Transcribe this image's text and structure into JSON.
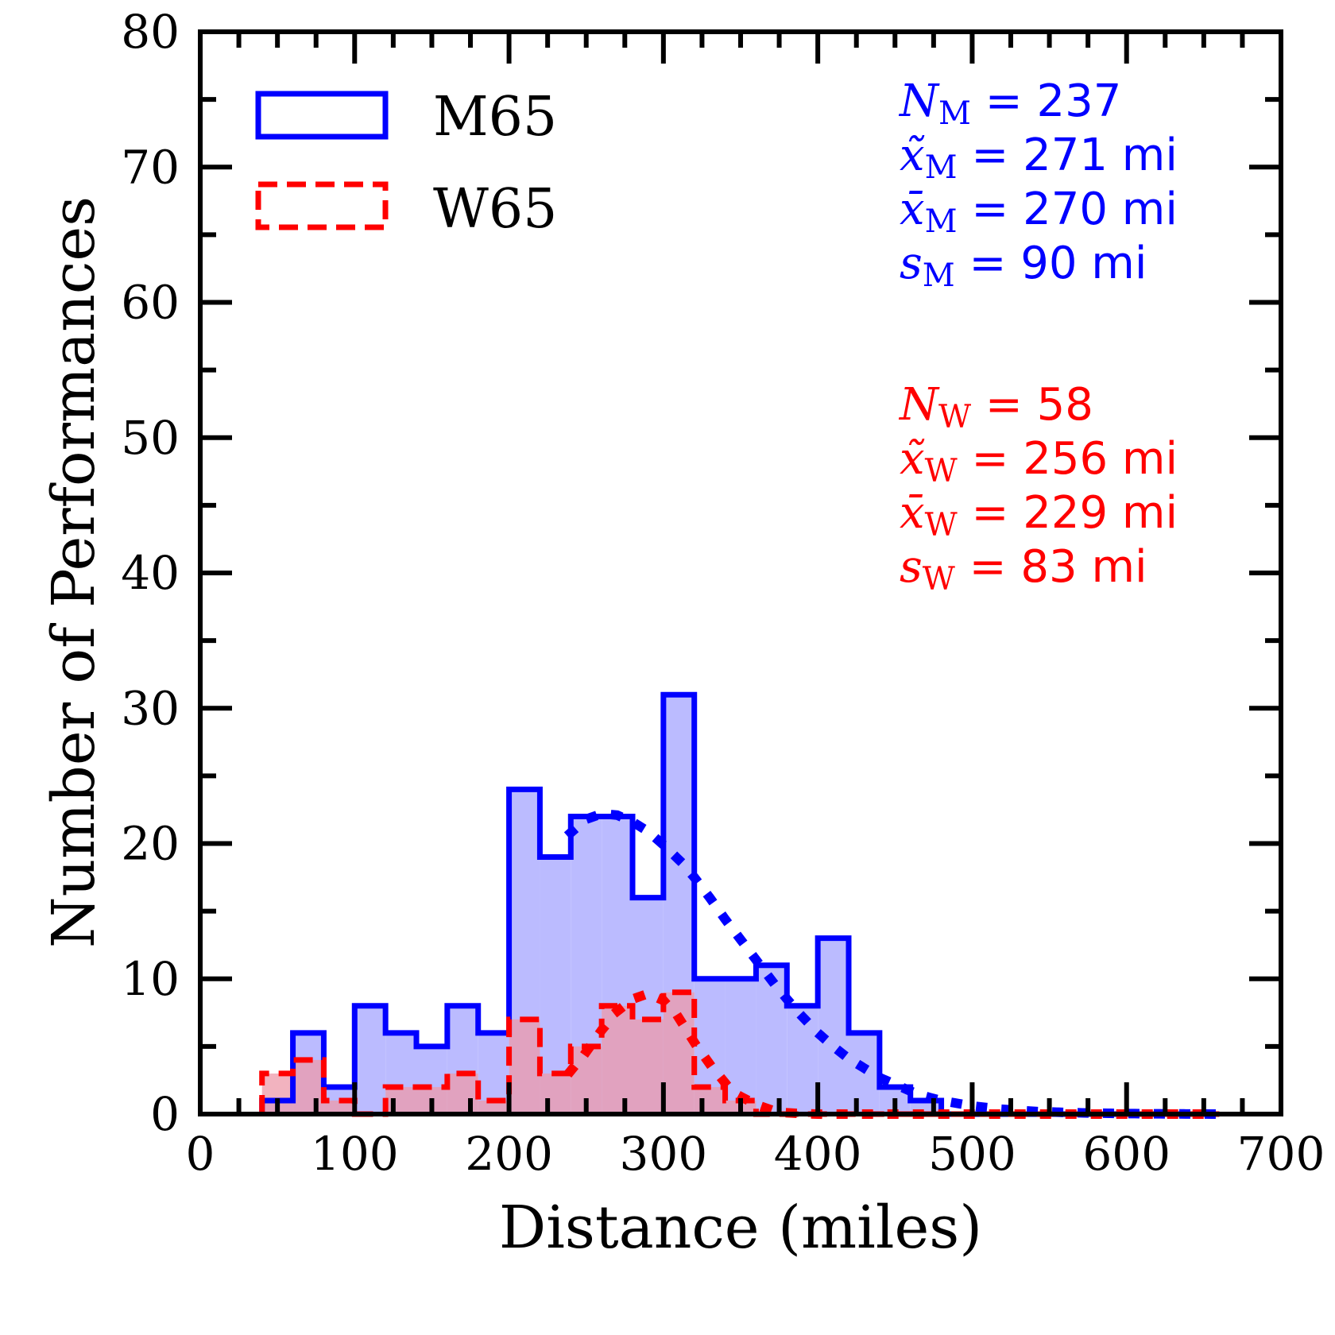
{
  "chart_data": {
    "type": "histogram",
    "xlabel": "Distance (miles)",
    "ylabel": "Number of Performances",
    "xlim": [
      0,
      700
    ],
    "ylim": [
      0,
      80
    ],
    "xticks": [
      0,
      100,
      200,
      300,
      400,
      500,
      600,
      700
    ],
    "yticks": [
      0,
      10,
      20,
      30,
      40,
      50,
      60,
      70,
      80
    ],
    "legend_position": "top-left",
    "bin_edges": [
      40,
      60,
      80,
      100,
      120,
      140,
      160,
      180,
      200,
      220,
      240,
      260,
      280,
      300,
      320,
      340,
      360,
      380,
      400,
      420,
      440,
      460,
      480,
      500,
      520,
      540,
      560,
      580,
      600,
      620,
      640,
      660
    ],
    "series": [
      {
        "name": "M65",
        "color": "#0000ff",
        "fill": "#bbbbff",
        "line_style": "solid",
        "counts": [
          1,
          6,
          2,
          8,
          6,
          5,
          8,
          6,
          24,
          19,
          22,
          22,
          16,
          31,
          10,
          10,
          11,
          8,
          13,
          6,
          2,
          1,
          0,
          0,
          0,
          0,
          0,
          0,
          0,
          0,
          0
        ],
        "fit": {
          "style": "dotted",
          "points": [
            [
              240,
              20.8
            ],
            [
              250,
              21.8
            ],
            [
              260,
              22.2
            ],
            [
              270,
              22.1
            ],
            [
              280,
              21.6
            ],
            [
              290,
              20.9
            ],
            [
              300,
              19.9
            ],
            [
              310,
              18.8
            ],
            [
              320,
              17.5
            ],
            [
              330,
              16.0
            ],
            [
              340,
              14.4
            ],
            [
              350,
              12.9
            ],
            [
              360,
              11.4
            ],
            [
              370,
              9.9
            ],
            [
              380,
              8.5
            ],
            [
              390,
              7.2
            ],
            [
              400,
              6.0
            ],
            [
              410,
              5.0
            ],
            [
              420,
              4.1
            ],
            [
              430,
              3.4
            ],
            [
              440,
              2.7
            ],
            [
              450,
              2.2
            ],
            [
              460,
              1.7
            ],
            [
              470,
              1.3
            ],
            [
              480,
              1.0
            ],
            [
              490,
              0.8
            ],
            [
              500,
              0.6
            ],
            [
              520,
              0.35
            ],
            [
              540,
              0.2
            ],
            [
              560,
              0.12
            ],
            [
              580,
              0.07
            ],
            [
              600,
              0.04
            ],
            [
              620,
              0.02
            ],
            [
              640,
              0.01
            ],
            [
              660,
              0.0
            ]
          ]
        }
      },
      {
        "name": "W65",
        "color": "#ff0000",
        "fill": "#ee99aa",
        "line_style": "dashed",
        "counts": [
          3,
          4,
          1,
          0,
          2,
          2,
          3,
          1,
          7,
          3,
          5,
          8,
          7,
          9,
          2,
          1,
          0,
          0,
          0,
          0,
          0,
          0,
          0,
          0,
          0,
          0,
          0,
          0,
          0,
          0,
          0
        ],
        "fit": {
          "style": "dotted",
          "points": [
            [
              240,
              3.2
            ],
            [
              250,
              4.6
            ],
            [
              260,
              6.2
            ],
            [
              270,
              7.6
            ],
            [
              280,
              8.5
            ],
            [
              290,
              8.9
            ],
            [
              300,
              8.4
            ],
            [
              310,
              7.1
            ],
            [
              320,
              5.3
            ],
            [
              330,
              3.7
            ],
            [
              340,
              2.3
            ],
            [
              350,
              1.3
            ],
            [
              360,
              0.7
            ],
            [
              370,
              0.3
            ],
            [
              380,
              0.1
            ],
            [
              390,
              0.03
            ],
            [
              400,
              0.0
            ],
            [
              460,
              0.0
            ],
            [
              520,
              0.0
            ],
            [
              580,
              0.0
            ],
            [
              640,
              0.0
            ],
            [
              660,
              0.0
            ]
          ]
        }
      }
    ],
    "annotations": {
      "men": [
        {
          "sym": "N",
          "sub": "M",
          "rest": " = 237"
        },
        {
          "sym": "x̃",
          "sub": "M",
          "rest": " = 271 mi"
        },
        {
          "sym": "x̄",
          "sub": "M",
          "rest": " = 270 mi"
        },
        {
          "sym": "s",
          "sub": "M",
          "rest": " = 90 mi"
        }
      ],
      "women": [
        {
          "sym": "N",
          "sub": "W",
          "rest": " = 58"
        },
        {
          "sym": "x̃",
          "sub": "W",
          "rest": " = 256 mi"
        },
        {
          "sym": "x̄",
          "sub": "W",
          "rest": " = 229 mi"
        },
        {
          "sym": "s",
          "sub": "W",
          "rest": " = 83 mi"
        }
      ]
    }
  }
}
